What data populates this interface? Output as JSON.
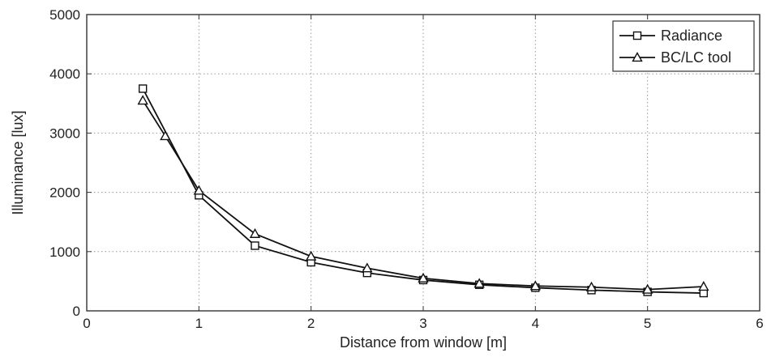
{
  "chart_data": {
    "type": "line",
    "title": "",
    "xlabel": "Distance from window [m]",
    "ylabel": "Illuminance [lux]",
    "xlim": [
      0,
      6
    ],
    "ylim": [
      0,
      5000
    ],
    "xticks": [
      "0",
      "1",
      "2",
      "3",
      "4",
      "5",
      "6"
    ],
    "yticks": [
      "0",
      "1000",
      "2000",
      "3000",
      "4000",
      "5000"
    ],
    "grid": true,
    "legend_position": "top-right",
    "series": [
      {
        "name": "Radiance",
        "marker": "square",
        "color": "#111111",
        "x": [
          0.5,
          1.0,
          1.5,
          2.0,
          2.5,
          3.0,
          3.5,
          4.0,
          4.5,
          5.0,
          5.5
        ],
        "y": [
          3750,
          1950,
          1100,
          820,
          640,
          520,
          440,
          390,
          350,
          320,
          300
        ]
      },
      {
        "name": "BC/LC tool",
        "marker": "triangle",
        "color": "#111111",
        "x": [
          0.5,
          0.7,
          1.0,
          1.5,
          2.0,
          2.5,
          3.0,
          3.5,
          4.0,
          4.5,
          5.0,
          5.5
        ],
        "y": [
          3550,
          2950,
          2030,
          1300,
          920,
          720,
          550,
          460,
          420,
          400,
          360,
          410
        ]
      }
    ]
  }
}
